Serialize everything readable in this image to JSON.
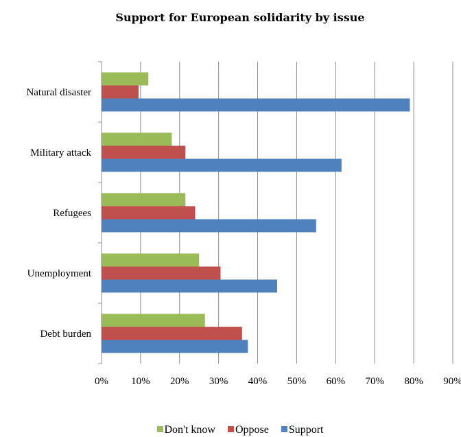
{
  "chart_data": {
    "type": "bar",
    "orientation": "horizontal",
    "title": "Support for European solidarity by issue",
    "categories": [
      "Natural disaster",
      "Military attack",
      "Refugees",
      "Unemployment",
      "Debt burden"
    ],
    "series": [
      {
        "name": "Don't know",
        "color": "#9BBB59",
        "values": [
          12,
          18,
          21.5,
          25,
          26.5
        ]
      },
      {
        "name": "Oppose",
        "color": "#C0504D",
        "values": [
          9.5,
          21.5,
          24,
          30.5,
          36
        ]
      },
      {
        "name": "Support",
        "color": "#4F81BD",
        "values": [
          79,
          61.5,
          55,
          45,
          37.5
        ]
      }
    ],
    "xlim": [
      0,
      90
    ],
    "x_ticks": [
      "0%",
      "10%",
      "20%",
      "30%",
      "40%",
      "50%",
      "60%",
      "70%",
      "80%",
      "90%"
    ],
    "grid": "vertical",
    "legend_position": "bottom"
  }
}
